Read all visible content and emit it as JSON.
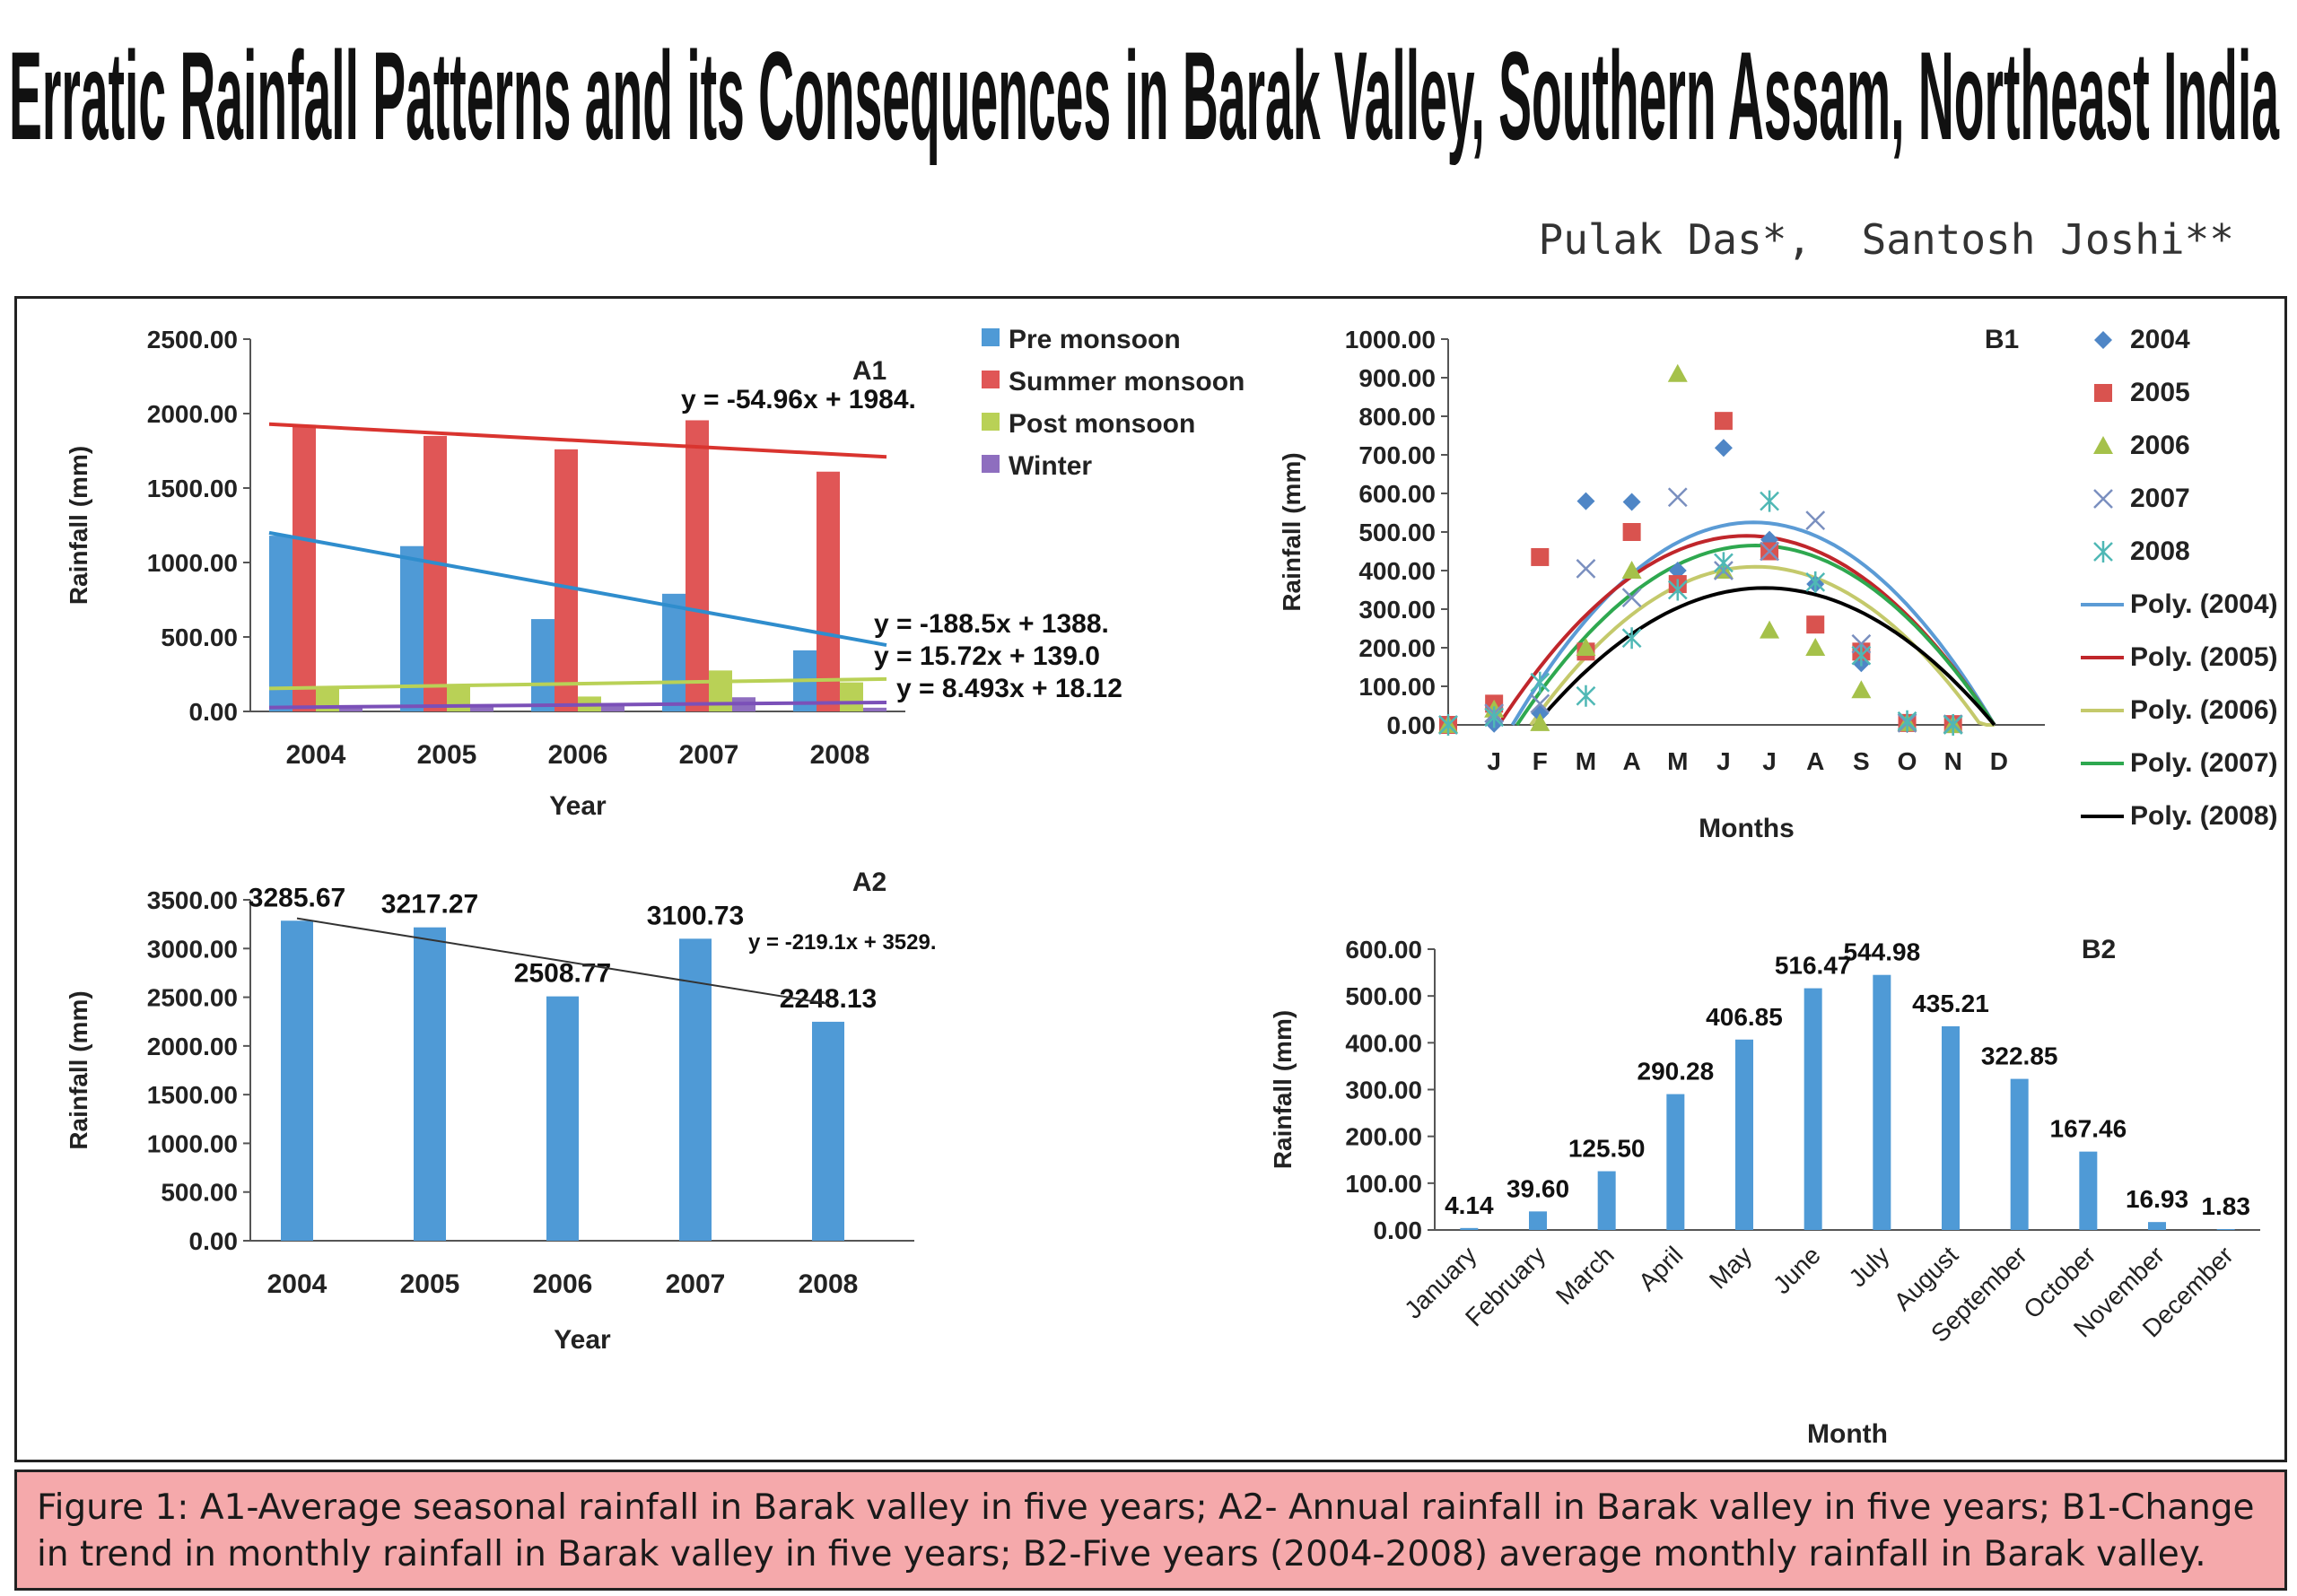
{
  "title": "Erratic Rainfall Patterns and its Consequences in Barak Valley, Southern Assam, Northeast India",
  "authors": "Pulak Das*,  Santosh Joshi**",
  "caption": "Figure 1: A1-Average seasonal rainfall in Barak valley in five years; A2- Annual rainfall in Barak valley in five years; B1-Change in trend in monthly rainfall in Barak valley in five years; B2-Five years (2004-2008) average monthly rainfall in Barak valley.",
  "chart_data": [
    {
      "id": "A1",
      "type": "bar",
      "label": "A1",
      "categories": [
        "2004",
        "2005",
        "2006",
        "2007",
        "2008"
      ],
      "xlabel": "Year",
      "ylabel": "Rainfall (mm)",
      "ylim": [
        0,
        2500
      ],
      "yticks": [
        "0.00",
        "500.00",
        "1000.00",
        "1500.00",
        "2000.00",
        "2500.00"
      ],
      "legend_position": "top-right",
      "series": [
        {
          "name": "Pre monsoon",
          "color": "#4f9ad6",
          "values": [
            1180,
            1110,
            620,
            790,
            410
          ]
        },
        {
          "name": "Summer monsoon",
          "color": "#e05656",
          "values": [
            1925,
            1850,
            1760,
            1955,
            1610
          ]
        },
        {
          "name": "Post monsoon",
          "color": "#b9d156",
          "values": [
            160,
            170,
            100,
            275,
            195
          ]
        },
        {
          "name": "Winter",
          "color": "#8e6ebf",
          "values": [
            30,
            35,
            40,
            95,
            25
          ]
        }
      ],
      "trendlines": [
        {
          "series": "Summer monsoon",
          "color": "#d9342f",
          "equation": "y = -54.96x + 1984.",
          "slope": -54.96,
          "intercept": 1984
        },
        {
          "series": "Pre monsoon",
          "color": "#2f8dcd",
          "equation": "y = -188.5x + 1388.",
          "slope": -188.5,
          "intercept": 1388
        },
        {
          "series": "Post monsoon",
          "color": "#b9d156",
          "equation": "y = 15.72x + 139.0",
          "slope": 15.72,
          "intercept": 139.0
        },
        {
          "series": "Winter",
          "color": "#7b50b8",
          "equation": "y = 8.493x + 18.12",
          "slope": 8.493,
          "intercept": 18.12
        }
      ]
    },
    {
      "id": "A2",
      "type": "bar",
      "label": "A2",
      "categories": [
        "2004",
        "2005",
        "2006",
        "2007",
        "2008"
      ],
      "values": [
        3285.67,
        3217.27,
        2508.77,
        3100.73,
        2248.13
      ],
      "data_labels": [
        "3285.67",
        "3217.27",
        "2508.77",
        "3100.73",
        "2248.13"
      ],
      "xlabel": "Year",
      "ylabel": "Rainfall (mm)",
      "ylim": [
        0,
        3500
      ],
      "yticks": [
        "0.00",
        "500.00",
        "1000.00",
        "1500.00",
        "2000.00",
        "2500.00",
        "3000.00",
        "3500.00"
      ],
      "color": "#4f9ad6",
      "trendline": {
        "equation": "y = -219.1x + 3529.",
        "slope": -219.1,
        "intercept": 3529,
        "color": "#333333"
      }
    },
    {
      "id": "B1",
      "type": "scatter",
      "label": "B1",
      "categories": [
        "",
        "J",
        "F",
        "M",
        "A",
        "M",
        "J",
        "J",
        "A",
        "S",
        "O",
        "N",
        "D",
        ""
      ],
      "xlabel": "Months",
      "ylabel": "Rainfall (mm)",
      "ylim": [
        0,
        1000
      ],
      "yticks": [
        "0.00",
        "100.00",
        "200.00",
        "300.00",
        "400.00",
        "500.00",
        "600.00",
        "700.00",
        "800.00",
        "900.00",
        "1000.00"
      ],
      "legend_position": "right",
      "series": [
        {
          "name": "2004",
          "marker": "diamond",
          "color": "#4f86c6",
          "x": [
            0,
            1,
            2,
            3,
            4,
            5,
            6,
            7,
            8,
            9,
            10,
            11
          ],
          "values": [
            0,
            3,
            30,
            580,
            578,
            400,
            718,
            480,
            365,
            160,
            2,
            0
          ]
        },
        {
          "name": "2005",
          "marker": "square",
          "color": "#d9534f",
          "x": [
            0,
            1,
            2,
            3,
            4,
            5,
            6,
            7,
            8,
            9,
            10,
            11
          ],
          "values": [
            0,
            55,
            435,
            190,
            500,
            365,
            788,
            450,
            260,
            190,
            5,
            2
          ]
        },
        {
          "name": "2006",
          "marker": "triangle",
          "color": "#a5c14a",
          "x": [
            0,
            1,
            2,
            3,
            4,
            5,
            6,
            7,
            8,
            9,
            10,
            11
          ],
          "values": [
            0,
            40,
            5,
            200,
            400,
            910,
            400,
            245,
            200,
            90,
            5,
            0
          ]
        },
        {
          "name": "2007",
          "marker": "x",
          "color": "#7a8fbf",
          "x": [
            0,
            1,
            2,
            3,
            4,
            5,
            6,
            7,
            8,
            9,
            10,
            11
          ],
          "values": [
            0,
            30,
            55,
            405,
            330,
            590,
            400,
            450,
            530,
            210,
            5,
            2
          ]
        },
        {
          "name": "2008",
          "marker": "star",
          "color": "#4fb8b5",
          "x": [
            0,
            1,
            2,
            3,
            4,
            5,
            6,
            7,
            8,
            9,
            10,
            11
          ],
          "values": [
            0,
            20,
            110,
            75,
            225,
            350,
            420,
            580,
            370,
            180,
            10,
            0
          ]
        }
      ],
      "poly_fits": [
        {
          "name": "Poly. (2004)",
          "color": "#5b9bd5",
          "peak_x": 5.75,
          "peak_y": 525,
          "zeros": [
            0.5,
            11.0
          ]
        },
        {
          "name": "Poly. (2005)",
          "color": "#c0262b",
          "peak_x": 5.6,
          "peak_y": 490,
          "zeros": [
            0.2,
            11.0
          ]
        },
        {
          "name": "Poly. (2006)",
          "color": "#c4c96b",
          "peak_x": 5.8,
          "peak_y": 410,
          "zeros": [
            0.9,
            11.0
          ]
        },
        {
          "name": "Poly. (2007)",
          "color": "#2ea84f",
          "peak_x": 5.8,
          "peak_y": 465,
          "zeros": [
            0.6,
            11.0
          ]
        },
        {
          "name": "Poly. (2008)",
          "color": "#000000",
          "peak_x": 6.0,
          "peak_y": 355,
          "zeros": [
            1.0,
            11.0
          ]
        }
      ]
    },
    {
      "id": "B2",
      "type": "bar",
      "label": "B2",
      "categories": [
        "January",
        "February",
        "March",
        "April",
        "May",
        "June",
        "July",
        "August",
        "September",
        "October",
        "November",
        "December"
      ],
      "values": [
        4.14,
        39.6,
        125.5,
        290.28,
        406.85,
        516.47,
        544.98,
        435.21,
        322.85,
        167.46,
        16.93,
        1.83
      ],
      "data_labels": [
        "4.14",
        "39.60",
        "125.50",
        "290.28",
        "406.85",
        "516.47",
        "544.98",
        "435.21",
        "322.85",
        "167.46",
        "16.93",
        "1.83"
      ],
      "xlabel": "Month",
      "ylabel": "Rainfall (mm)",
      "ylim": [
        0,
        600
      ],
      "yticks": [
        "0.00",
        "100.00",
        "200.00",
        "300.00",
        "400.00",
        "500.00",
        "600.00"
      ],
      "color": "#4f9ad6"
    }
  ]
}
